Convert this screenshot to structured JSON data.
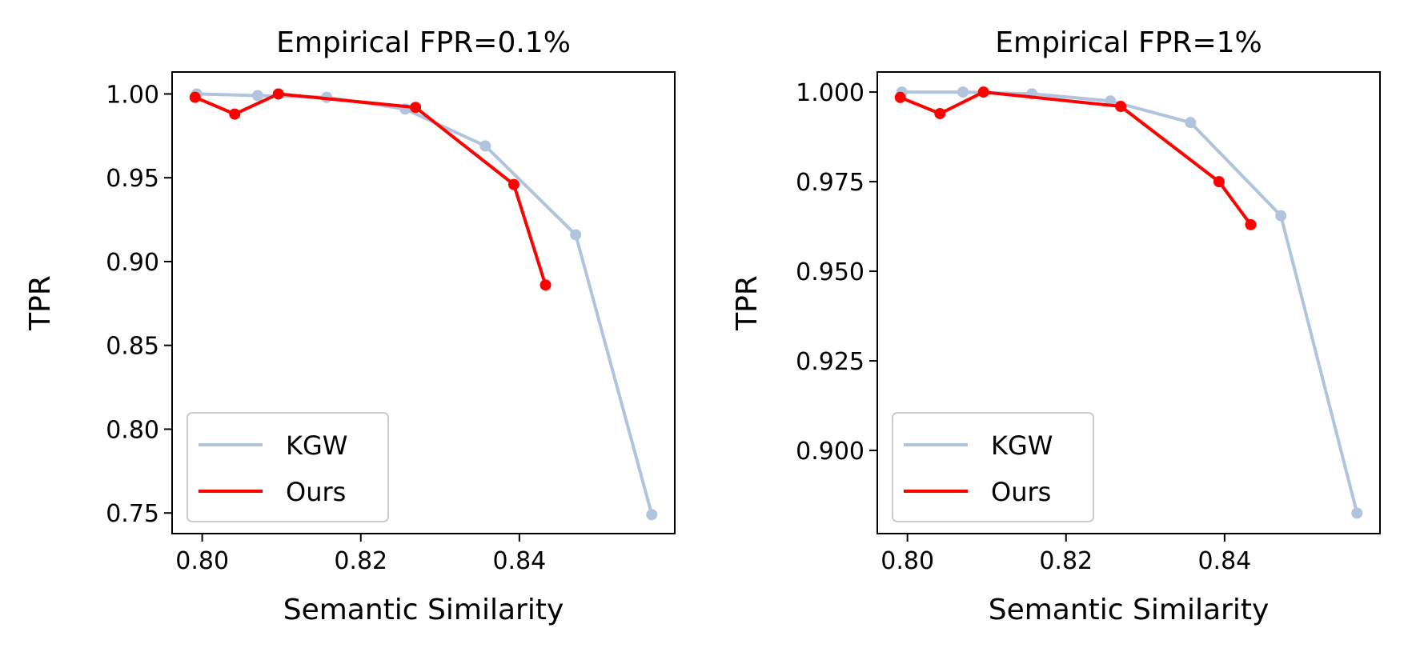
{
  "chart_data": [
    {
      "type": "line",
      "title": "Empirical FPR=0.1%",
      "xlabel": "Semantic Similarity",
      "ylabel": "TPR",
      "xlim": [
        0.7962,
        0.8596
      ],
      "ylim": [
        0.7377,
        1.0131
      ],
      "xticks": [
        0.8,
        0.82,
        0.84
      ],
      "xtick_labels": [
        "0.80",
        "0.82",
        "0.84"
      ],
      "yticks": [
        0.75,
        0.8,
        0.85,
        0.9,
        0.95,
        1.0
      ],
      "ytick_labels": [
        "0.75",
        "0.80",
        "0.85",
        "0.90",
        "0.95",
        "1.00"
      ],
      "legend_position": "lower-left",
      "series": [
        {
          "name": "KGW",
          "color": "#b0c4de",
          "x": [
            0.7993,
            0.807,
            0.8157,
            0.8256,
            0.8357,
            0.8471,
            0.8567
          ],
          "y": [
            1.0,
            0.999,
            0.998,
            0.991,
            0.969,
            0.916,
            0.749
          ]
        },
        {
          "name": "Ours",
          "color": "#ff0000",
          "x": [
            0.7991,
            0.8041,
            0.8096,
            0.8269,
            0.8393,
            0.8433
          ],
          "y": [
            0.998,
            0.988,
            1.0,
            0.992,
            0.946,
            0.886
          ]
        }
      ]
    },
    {
      "type": "line",
      "title": "Empirical FPR=1%",
      "xlabel": "Semantic Similarity",
      "ylabel": "TPR",
      "xlim": [
        0.7962,
        0.8596
      ],
      "ylim": [
        0.8768,
        1.0056
      ],
      "xticks": [
        0.8,
        0.82,
        0.84
      ],
      "xtick_labels": [
        "0.80",
        "0.82",
        "0.84"
      ],
      "yticks": [
        0.9,
        0.925,
        0.95,
        0.975,
        1.0
      ],
      "ytick_labels": [
        "0.900",
        "0.925",
        "0.950",
        "0.975",
        "1.000"
      ],
      "legend_position": "lower-left",
      "series": [
        {
          "name": "KGW",
          "color": "#b0c4de",
          "x": [
            0.7993,
            0.807,
            0.8157,
            0.8256,
            0.8357,
            0.8471,
            0.8567
          ],
          "y": [
            1.0,
            1.0,
            0.9995,
            0.9975,
            0.9915,
            0.9655,
            0.8825
          ]
        },
        {
          "name": "Ours",
          "color": "#ff0000",
          "x": [
            0.7991,
            0.8041,
            0.8096,
            0.8269,
            0.8393,
            0.8433
          ],
          "y": [
            0.9985,
            0.994,
            1.0,
            0.996,
            0.975,
            0.963
          ]
        }
      ]
    }
  ]
}
